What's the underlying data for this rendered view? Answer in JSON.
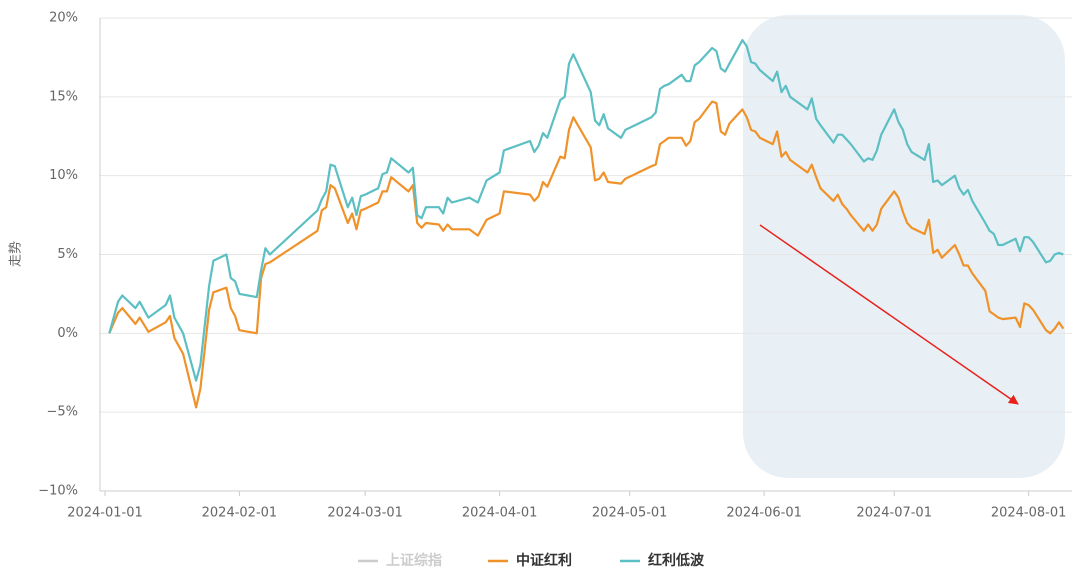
{
  "chart_data": {
    "type": "line",
    "y_label": "走势",
    "x": [
      "2024-01-02",
      "2024-01-04",
      "2024-01-05",
      "2024-01-08",
      "2024-01-09",
      "2024-01-11",
      "2024-01-15",
      "2024-01-16",
      "2024-01-17",
      "2024-01-19",
      "2024-01-22",
      "2024-01-23",
      "2024-01-25",
      "2024-01-26",
      "2024-01-29",
      "2024-01-30",
      "2024-01-31",
      "2024-02-01",
      "2024-02-05",
      "2024-02-06",
      "2024-02-07",
      "2024-02-08",
      "2024-02-19",
      "2024-02-20",
      "2024-02-21",
      "2024-02-22",
      "2024-02-23",
      "2024-02-26",
      "2024-02-27",
      "2024-02-28",
      "2024-02-29",
      "2024-03-01",
      "2024-03-04",
      "2024-03-05",
      "2024-03-06",
      "2024-03-07",
      "2024-03-11",
      "2024-03-12",
      "2024-03-13",
      "2024-03-14",
      "2024-03-15",
      "2024-03-18",
      "2024-03-19",
      "2024-03-20",
      "2024-03-21",
      "2024-03-25",
      "2024-03-27",
      "2024-03-29",
      "2024-04-01",
      "2024-04-02",
      "2024-04-08",
      "2024-04-09",
      "2024-04-10",
      "2024-04-11",
      "2024-04-12",
      "2024-04-15",
      "2024-04-16",
      "2024-04-17",
      "2024-04-18",
      "2024-04-22",
      "2024-04-23",
      "2024-04-24",
      "2024-04-25",
      "2024-04-26",
      "2024-04-29",
      "2024-04-30",
      "2024-05-06",
      "2024-05-07",
      "2024-05-08",
      "2024-05-09",
      "2024-05-10",
      "2024-05-13",
      "2024-05-14",
      "2024-05-15",
      "2024-05-16",
      "2024-05-17",
      "2024-05-20",
      "2024-05-21",
      "2024-05-22",
      "2024-05-23",
      "2024-05-24",
      "2024-05-27",
      "2024-05-28",
      "2024-05-29",
      "2024-05-30",
      "2024-05-31",
      "2024-06-03",
      "2024-06-04",
      "2024-06-05",
      "2024-06-06",
      "2024-06-07",
      "2024-06-11",
      "2024-06-12",
      "2024-06-13",
      "2024-06-14",
      "2024-06-17",
      "2024-06-18",
      "2024-06-19",
      "2024-06-20",
      "2024-06-21",
      "2024-06-24",
      "2024-06-25",
      "2024-06-26",
      "2024-06-27",
      "2024-06-28",
      "2024-07-01",
      "2024-07-02",
      "2024-07-03",
      "2024-07-04",
      "2024-07-05",
      "2024-07-08",
      "2024-07-09",
      "2024-07-10",
      "2024-07-11",
      "2024-07-12",
      "2024-07-15",
      "2024-07-16",
      "2024-07-17",
      "2024-07-18",
      "2024-07-19",
      "2024-07-22",
      "2024-07-23",
      "2024-07-24",
      "2024-07-25",
      "2024-07-26",
      "2024-07-29",
      "2024-07-30",
      "2024-07-31",
      "2024-08-01",
      "2024-08-02",
      "2024-08-05",
      "2024-08-06",
      "2024-08-07",
      "2024-08-08",
      "2024-08-09"
    ],
    "series": [
      {
        "name": "中证红利",
        "color": "#f0922a",
        "values": [
          0,
          1.3,
          1.6,
          0.6,
          1.0,
          0.1,
          0.7,
          1.1,
          -0.3,
          -1.3,
          -4.7,
          -3.5,
          1.5,
          2.6,
          2.9,
          1.6,
          1.1,
          0.2,
          0.0,
          3.5,
          4.4,
          4.5,
          6.5,
          7.8,
          8.0,
          9.4,
          9.2,
          7.0,
          7.6,
          6.6,
          7.8,
          7.9,
          8.3,
          9.0,
          9.0,
          9.9,
          9.0,
          9.4,
          7.0,
          6.7,
          7.0,
          6.9,
          6.5,
          6.9,
          6.6,
          6.6,
          6.2,
          7.2,
          7.6,
          9.0,
          8.8,
          8.4,
          8.7,
          9.6,
          9.3,
          11.2,
          11.1,
          12.9,
          13.7,
          11.8,
          9.7,
          9.8,
          10.2,
          9.6,
          9.5,
          9.8,
          10.6,
          10.7,
          12.0,
          12.2,
          12.4,
          12.4,
          11.9,
          12.2,
          13.4,
          13.6,
          14.7,
          14.6,
          12.8,
          12.6,
          13.3,
          14.2,
          13.7,
          12.9,
          12.8,
          12.4,
          12.0,
          12.8,
          11.2,
          11.5,
          11.0,
          10.2,
          10.7,
          9.9,
          9.2,
          8.4,
          8.8,
          8.2,
          7.9,
          7.5,
          6.5,
          6.9,
          6.5,
          6.9,
          7.9,
          9.0,
          8.6,
          7.7,
          7.0,
          6.7,
          6.3,
          7.2,
          5.1,
          5.3,
          4.8,
          5.6,
          5.0,
          4.3,
          4.3,
          3.8,
          2.7,
          1.4,
          1.2,
          1.0,
          0.9,
          1.0,
          0.4,
          1.9,
          1.8,
          1.5,
          0.2,
          0.0,
          0.3,
          0.7,
          0.3
        ]
      },
      {
        "name": "红利低波",
        "color": "#5bbfc3",
        "values": [
          0,
          2.0,
          2.4,
          1.6,
          2.0,
          1.0,
          1.8,
          2.4,
          1.0,
          0.0,
          -3.0,
          -2.0,
          3.0,
          4.6,
          5.0,
          3.5,
          3.3,
          2.5,
          2.3,
          4.0,
          5.4,
          5.0,
          7.8,
          8.5,
          9.0,
          10.7,
          10.6,
          8.0,
          8.6,
          7.5,
          8.7,
          8.8,
          9.2,
          10.1,
          10.2,
          11.1,
          10.2,
          10.5,
          7.5,
          7.3,
          8.0,
          8.0,
          7.6,
          8.6,
          8.3,
          8.6,
          8.3,
          9.7,
          10.2,
          11.6,
          12.2,
          11.5,
          11.9,
          12.7,
          12.4,
          14.8,
          15.0,
          17.1,
          17.7,
          15.3,
          13.5,
          13.2,
          13.9,
          13.0,
          12.4,
          12.9,
          13.7,
          14.0,
          15.5,
          15.7,
          15.8,
          16.4,
          16.0,
          16.0,
          17.0,
          17.2,
          18.1,
          17.9,
          16.8,
          16.6,
          17.1,
          18.6,
          18.2,
          17.2,
          17.1,
          16.7,
          16.0,
          16.6,
          15.3,
          15.7,
          15.0,
          14.2,
          14.9,
          13.6,
          13.2,
          12.1,
          12.6,
          12.6,
          12.3,
          12.0,
          10.9,
          11.1,
          11.0,
          11.6,
          12.6,
          14.2,
          13.4,
          12.9,
          12.0,
          11.5,
          11.0,
          12.0,
          9.6,
          9.7,
          9.4,
          10.0,
          9.2,
          8.8,
          9.1,
          8.4,
          7.0,
          6.5,
          6.3,
          5.6,
          5.6,
          6.0,
          5.2,
          6.1,
          6.1,
          5.8,
          4.5,
          4.6,
          5.0,
          5.1,
          5.0
        ]
      }
    ],
    "hidden_series": [
      {
        "name": "上证综指",
        "color": "#cccccc"
      }
    ],
    "xlim": [
      "2024-01-01",
      "2024-08-11"
    ],
    "xticks": [
      "2024-01-01",
      "2024-02-01",
      "2024-03-01",
      "2024-04-01",
      "2024-05-01",
      "2024-06-01",
      "2024-07-01",
      "2024-08-01"
    ],
    "ylim": [
      -10,
      20
    ],
    "yticks": [
      {
        "value": -10,
        "label": "−10%"
      },
      {
        "value": -5,
        "label": "−5%"
      },
      {
        "value": 0,
        "label": "0%"
      },
      {
        "value": 5,
        "label": "5%"
      },
      {
        "value": 10,
        "label": "10%"
      },
      {
        "value": 15,
        "label": "15%"
      },
      {
        "value": 20,
        "label": "20%"
      }
    ],
    "grid": true
  }
}
